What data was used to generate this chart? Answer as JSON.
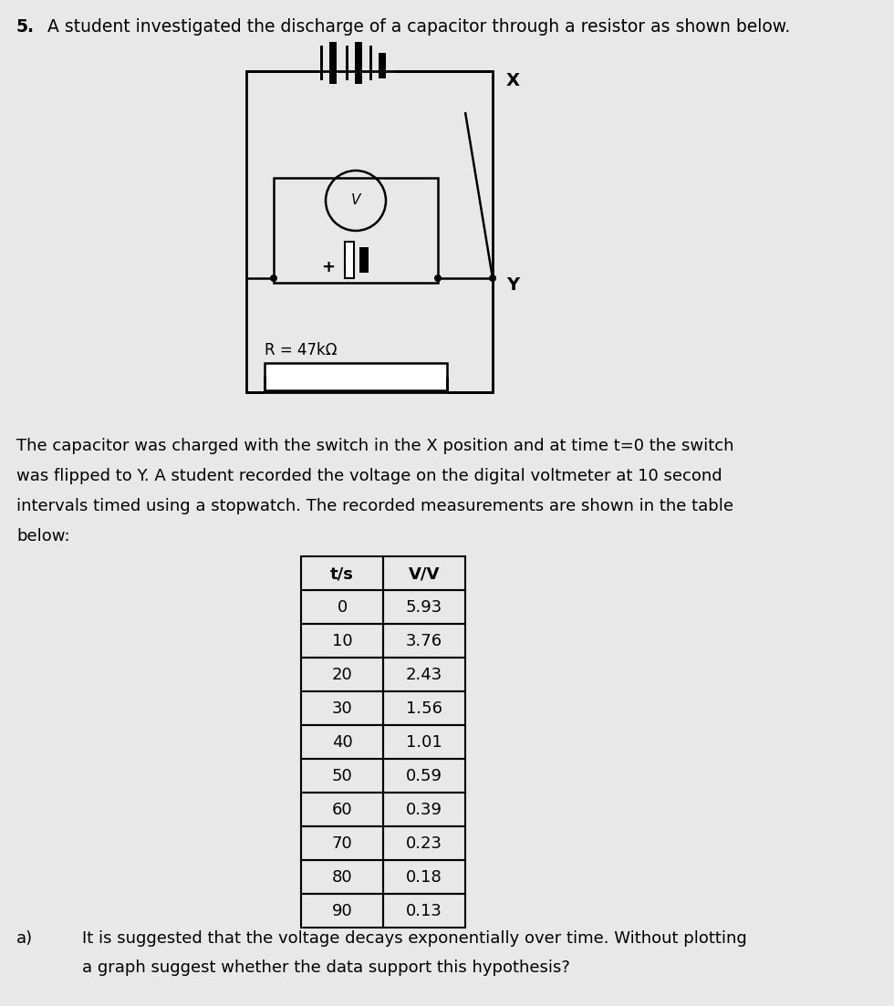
{
  "title_num": "5.",
  "title_text": "  A student investigated the discharge of a capacitor through a resistor as shown below.",
  "paragraph_lines": [
    "The capacitor was charged with the switch in the X position and at time t=0 the switch",
    "was flipped to Y. A student recorded the voltage on the digital voltmeter at 10 second",
    "intervals timed using a stopwatch. The recorded measurements are shown in the table",
    "below:"
  ],
  "table_headers": [
    "t/s",
    "V/V"
  ],
  "table_data": [
    [
      0,
      5.93
    ],
    [
      10,
      3.76
    ],
    [
      20,
      2.43
    ],
    [
      30,
      1.56
    ],
    [
      40,
      1.01
    ],
    [
      50,
      0.59
    ],
    [
      60,
      0.39
    ],
    [
      70,
      0.23
    ],
    [
      80,
      0.18
    ],
    [
      90,
      0.13
    ]
  ],
  "question_a_label": "a)",
  "question_a_lines": [
    "It is suggested that the voltage decays exponentially over time. Without plotting",
    "a graph suggest whether the data support this hypothesis?"
  ],
  "background_color": "#e8e8e8",
  "text_color": "#000000",
  "font_size_title": 13.5,
  "font_size_body": 13.0,
  "font_size_table": 13.0,
  "resistor_label": "R = 47kΩ",
  "switch_x_label": "X",
  "switch_y_label": "Y"
}
